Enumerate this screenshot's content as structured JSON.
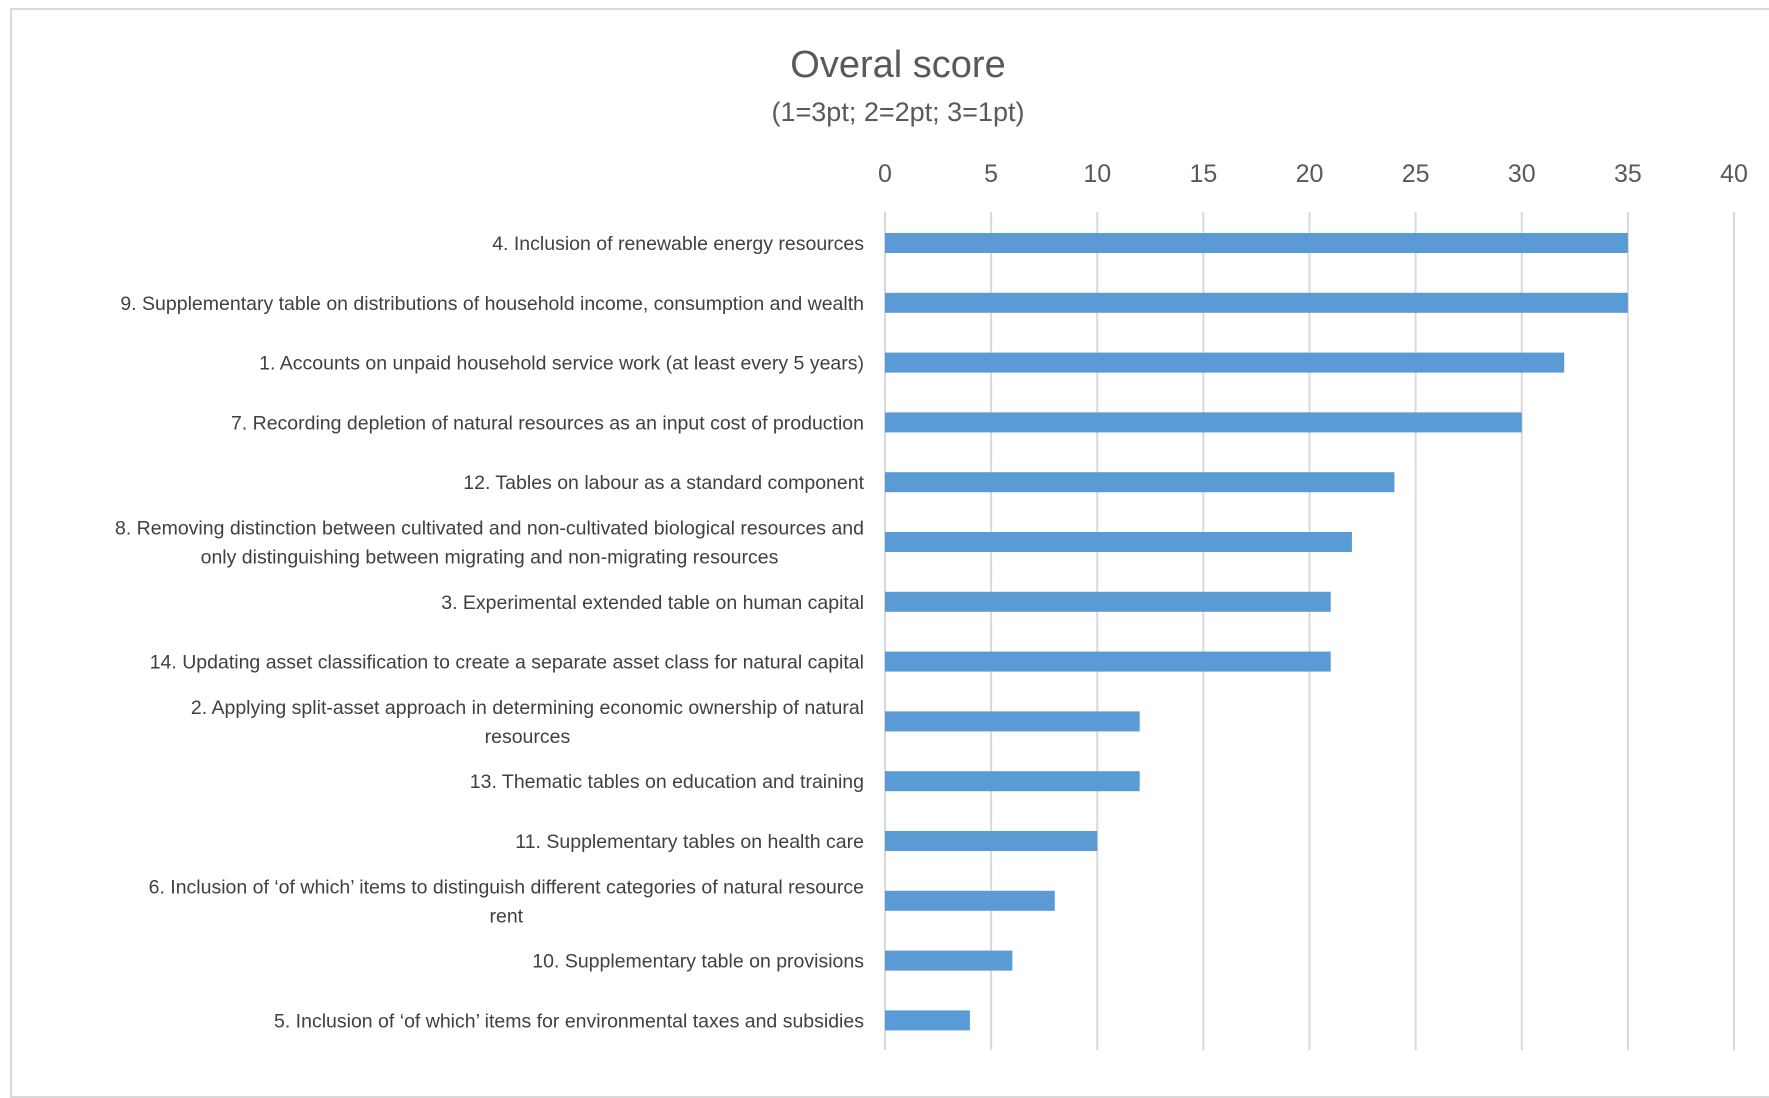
{
  "chart_data": {
    "type": "bar",
    "orientation": "horizontal",
    "title": "Overal score",
    "subtitle": "(1=3pt; 2=2pt; 3=1pt)",
    "xlim": [
      0,
      40
    ],
    "x_ticks": [
      "0",
      "5",
      "10",
      "15",
      "20",
      "25",
      "30",
      "35",
      "40"
    ],
    "grid": true,
    "axis_position": "top",
    "bar_color": "#5b9bd5",
    "categories": [
      {
        "label_lines": [
          "4. Inclusion of renewable energy resources"
        ],
        "value": 35
      },
      {
        "label_lines": [
          "9. Supplementary table on distributions of household income, consumption and wealth"
        ],
        "value": 35
      },
      {
        "label_lines": [
          "1. Accounts on unpaid household service work (at least every 5 years)"
        ],
        "value": 32
      },
      {
        "label_lines": [
          "7. Recording depletion of natural resources as an input cost of production"
        ],
        "value": 30
      },
      {
        "label_lines": [
          "12. Tables on labour as a standard component"
        ],
        "value": 24
      },
      {
        "label_lines": [
          "8. Removing distinction between cultivated and non-cultivated biological resources and",
          "only distinguishing between migrating and non-migrating resources"
        ],
        "value": 22
      },
      {
        "label_lines": [
          "3. Experimental extended table on human capital"
        ],
        "value": 21
      },
      {
        "label_lines": [
          "14. Updating asset classification to create a separate asset class for natural capital"
        ],
        "value": 21
      },
      {
        "label_lines": [
          "2. Applying split-asset approach in determining economic ownership of natural",
          "resources"
        ],
        "value": 12
      },
      {
        "label_lines": [
          "13. Thematic tables on education and training"
        ],
        "value": 12
      },
      {
        "label_lines": [
          "11. Supplementary tables on health care"
        ],
        "value": 10
      },
      {
        "label_lines": [
          "6. Inclusion of ‘of which’ items to distinguish different categories of natural resource",
          "rent"
        ],
        "value": 8
      },
      {
        "label_lines": [
          "10. Supplementary table on provisions"
        ],
        "value": 6
      },
      {
        "label_lines": [
          "5. Inclusion of ‘of which’ items for environmental taxes and subsidies"
        ],
        "value": 4
      }
    ]
  }
}
